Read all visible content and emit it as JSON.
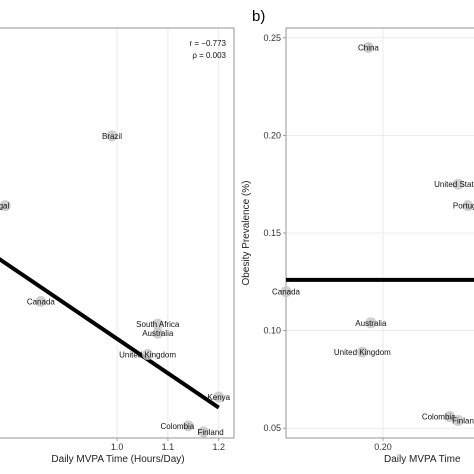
{
  "chart_data": [
    {
      "type": "scatter",
      "title": "",
      "xlabel": "Daily MVPA Time (Hours/Day)",
      "ylabel": "",
      "xlim": [
        0.75,
        1.23
      ],
      "ylim": [
        0.0,
        0.27
      ],
      "x_ticks": [
        {
          "value": 1.0,
          "label": "1.0"
        },
        {
          "value": 1.1,
          "label": "1.1"
        },
        {
          "value": 1.2,
          "label": "1.2"
        }
      ],
      "y_ticks": [],
      "annotations": [
        "r = −0.773",
        "ρ = 0.003"
      ],
      "grid": true,
      "points": [
        {
          "label": "Brazil",
          "x": 0.99,
          "y": 0.199
        },
        {
          "label": "Portugal",
          "x": 0.78,
          "y": 0.153
        },
        {
          "label": "Canada",
          "x": 0.85,
          "y": 0.09
        },
        {
          "label": "South Africa",
          "x": 1.08,
          "y": 0.075
        },
        {
          "label": "Australia",
          "x": 1.08,
          "y": 0.069
        },
        {
          "label": "United Kingdom",
          "x": 1.06,
          "y": 0.055
        },
        {
          "label": "Kenya",
          "x": 1.2,
          "y": 0.027
        },
        {
          "label": "Colombia",
          "x": 1.14,
          "y": 0.008
        },
        {
          "label": "Finland",
          "x": 1.17,
          "y": 0.004
        }
      ],
      "trend_line": {
        "x": [
          0.75,
          1.2
        ],
        "y": [
          0.122,
          0.02
        ]
      }
    },
    {
      "type": "scatter",
      "panel_label": "b)",
      "title": "",
      "xlabel": "Daily MVPA Time",
      "ylabel": "Obesity Prevalence (%)",
      "xlim": [
        0.12,
        0.285
      ],
      "ylim": [
        0.045,
        0.255
      ],
      "x_ticks": [
        {
          "value": 0.2,
          "label": "0.20"
        }
      ],
      "y_ticks": [
        {
          "value": 0.05,
          "label": "0.05"
        },
        {
          "value": 0.1,
          "label": "0.10"
        },
        {
          "value": 0.15,
          "label": "0.15"
        },
        {
          "value": 0.2,
          "label": "0.20"
        },
        {
          "value": 0.25,
          "label": "0.25"
        }
      ],
      "grid": true,
      "points": [
        {
          "label": "China",
          "x": 0.188,
          "y": 0.245
        },
        {
          "label": "United States",
          "x": 0.262,
          "y": 0.175
        },
        {
          "label": "Portugal",
          "x": 0.27,
          "y": 0.164
        },
        {
          "label": "Canada",
          "x": 0.12,
          "y": 0.12
        },
        {
          "label": "Australia",
          "x": 0.19,
          "y": 0.104
        },
        {
          "label": "United Kingdom",
          "x": 0.183,
          "y": 0.089
        },
        {
          "label": "Colombia",
          "x": 0.255,
          "y": 0.056
        },
        {
          "label": "Finland",
          "x": 0.262,
          "y": 0.054
        }
      ],
      "trend_line": {
        "x": [
          0.12,
          0.285
        ],
        "y": [
          0.126,
          0.126
        ]
      }
    }
  ]
}
